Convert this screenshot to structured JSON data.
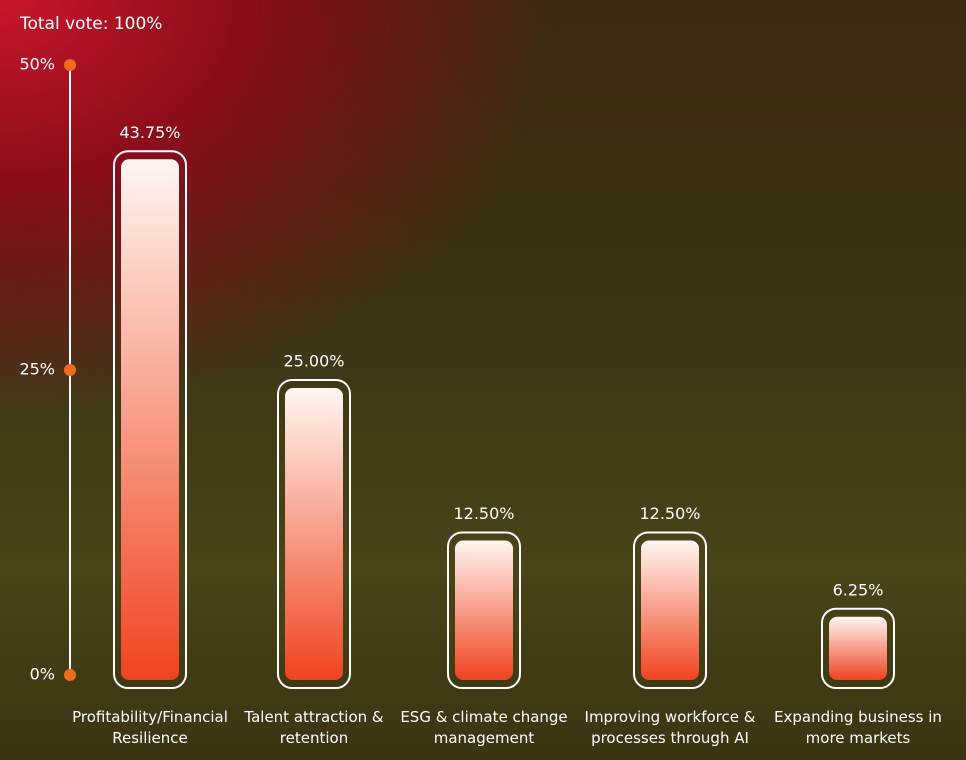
{
  "chart_data": {
    "type": "bar",
    "title": "Total vote: 100%",
    "categories": [
      "Profitability/Financial Resilience",
      "Talent attraction & retention",
      "ESG & climate change management",
      "Improving workforce & processes through AI",
      "Expanding business in more markets"
    ],
    "values": [
      43.75,
      25,
      12.5,
      12.5,
      6.25
    ],
    "value_labels": [
      "43.75%",
      "25.00%",
      "12.50%",
      "12.50%",
      "6.25%"
    ],
    "color": "#f0431f",
    "ylim": [
      0,
      50
    ],
    "yticks": [
      {
        "value": 0,
        "label": "0%"
      },
      {
        "value": 25,
        "label": "25%"
      },
      {
        "value": 50,
        "label": "50%"
      }
    ]
  }
}
